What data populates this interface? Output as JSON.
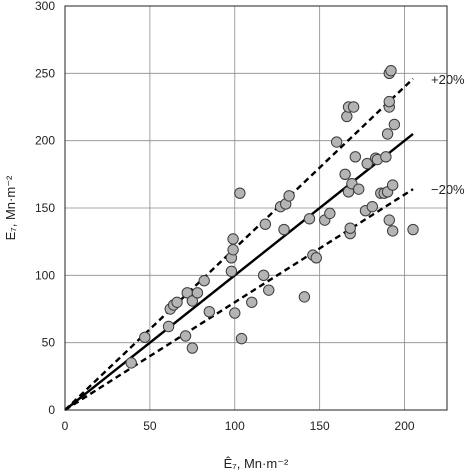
{
  "chart_data": {
    "type": "scatter",
    "title": "",
    "xlabel": "Ê₇, Mn·m⁻²",
    "ylabel": "E₇, Mn·m⁻²",
    "xlim": [
      0,
      225
    ],
    "ylim": [
      0,
      300
    ],
    "grid": true,
    "x_ticks": [
      0,
      50,
      100,
      150,
      200
    ],
    "y_ticks": [
      0,
      50,
      100,
      150,
      200,
      250,
      300
    ],
    "points": [
      [
        39,
        35
      ],
      [
        47,
        54
      ],
      [
        61,
        62
      ],
      [
        62,
        75
      ],
      [
        64,
        78
      ],
      [
        66,
        80
      ],
      [
        71,
        55
      ],
      [
        72,
        87
      ],
      [
        75,
        46
      ],
      [
        75,
        81
      ],
      [
        78,
        87
      ],
      [
        82,
        96
      ],
      [
        85,
        73
      ],
      [
        98,
        103
      ],
      [
        98,
        113
      ],
      [
        99,
        119
      ],
      [
        99,
        127
      ],
      [
        100,
        72
      ],
      [
        103,
        161
      ],
      [
        104,
        53
      ],
      [
        110,
        80
      ],
      [
        117,
        100
      ],
      [
        118,
        138
      ],
      [
        120,
        89
      ],
      [
        127,
        151
      ],
      [
        129,
        134
      ],
      [
        130,
        153
      ],
      [
        132,
        159
      ],
      [
        141,
        84
      ],
      [
        144,
        142
      ],
      [
        146,
        115
      ],
      [
        148,
        113
      ],
      [
        153,
        141
      ],
      [
        156,
        146
      ],
      [
        160,
        199
      ],
      [
        165,
        175
      ],
      [
        166,
        218
      ],
      [
        167,
        225
      ],
      [
        167,
        162
      ],
      [
        168,
        131
      ],
      [
        168,
        135
      ],
      [
        169,
        168
      ],
      [
        170,
        225
      ],
      [
        171,
        188
      ],
      [
        173,
        164
      ],
      [
        177,
        148
      ],
      [
        178,
        183
      ],
      [
        181,
        151
      ],
      [
        183,
        187
      ],
      [
        184,
        186
      ],
      [
        186,
        161
      ],
      [
        188,
        161
      ],
      [
        189,
        188
      ],
      [
        190,
        205
      ],
      [
        190,
        162
      ],
      [
        191,
        141
      ],
      [
        191,
        225
      ],
      [
        191,
        229
      ],
      [
        191,
        250
      ],
      [
        192,
        252
      ],
      [
        193,
        133
      ],
      [
        193,
        167
      ],
      [
        194,
        212
      ],
      [
        205,
        134
      ]
    ],
    "lines": [
      {
        "name": "equality",
        "style": "solid",
        "slope": 1.0
      },
      {
        "name": "+20%",
        "style": "dashed",
        "slope": 1.2
      },
      {
        "name": "−20%",
        "style": "dashed",
        "slope": 0.8
      }
    ],
    "annotations": [
      "+20%",
      "−20%"
    ]
  }
}
